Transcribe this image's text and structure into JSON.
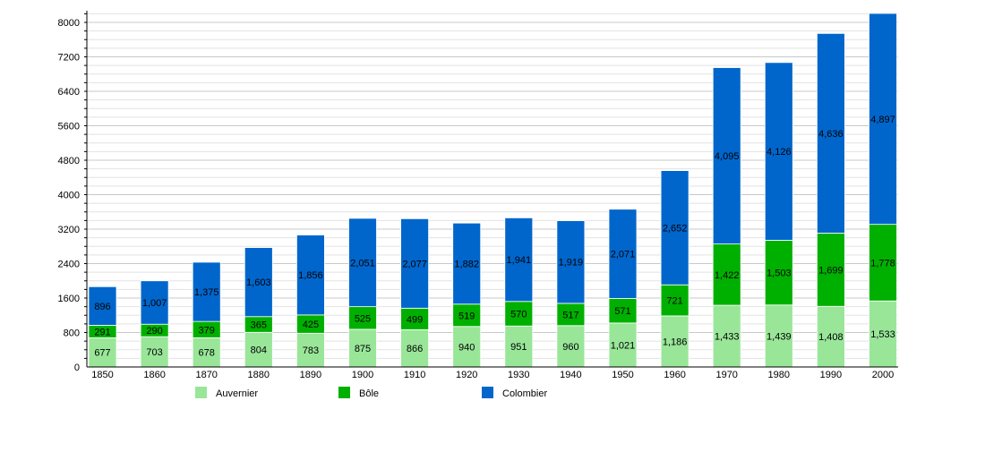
{
  "chart_data": {
    "type": "bar",
    "stacked": true,
    "title": "",
    "xlabel": "",
    "ylabel": "",
    "ylim": [
      0,
      8000
    ],
    "yticks": [
      0,
      800,
      1600,
      2400,
      3200,
      4000,
      4800,
      5600,
      6400,
      7200,
      8000
    ],
    "grid": true,
    "legend_position": "bottom",
    "categories": [
      "1850",
      "1860",
      "1870",
      "1880",
      "1890",
      "1900",
      "1910",
      "1920",
      "1930",
      "1940",
      "1950",
      "1960",
      "1970",
      "1980",
      "1990",
      "2000"
    ],
    "series": [
      {
        "name": "Auvernier",
        "color": "#99e699",
        "values": [
          677,
          703,
          678,
          804,
          783,
          875,
          866,
          940,
          951,
          960,
          1021,
          1186,
          1433,
          1439,
          1408,
          1533
        ],
        "labels": [
          "677",
          "703",
          "678",
          "804",
          "783",
          "875",
          "866",
          "940",
          "951",
          "960",
          "1,021",
          "1,186",
          "1,433",
          "1,439",
          "1,408",
          "1,533"
        ]
      },
      {
        "name": "Bôle",
        "color": "#00b000",
        "values": [
          291,
          290,
          379,
          365,
          425,
          525,
          499,
          519,
          570,
          517,
          571,
          721,
          1422,
          1503,
          1699,
          1778
        ],
        "labels": [
          "291",
          "290",
          "379",
          "365",
          "425",
          "525",
          "499",
          "519",
          "570",
          "517",
          "571",
          "721",
          "1,422",
          "1,503",
          "1,699",
          "1,778"
        ]
      },
      {
        "name": "Colombier",
        "color": "#0066cc",
        "values": [
          896,
          1007,
          1375,
          1603,
          1856,
          2051,
          2077,
          1882,
          1941,
          1919,
          2071,
          2652,
          4095,
          4126,
          4636,
          4897
        ],
        "labels": [
          "896",
          "1,007",
          "1,375",
          "1,603",
          "1,856",
          "2,051",
          "2,077",
          "1,882",
          "1,941",
          "1,919",
          "2,071",
          "2,652",
          "4,095",
          "4,126",
          "4,636",
          "4,897"
        ]
      }
    ]
  }
}
